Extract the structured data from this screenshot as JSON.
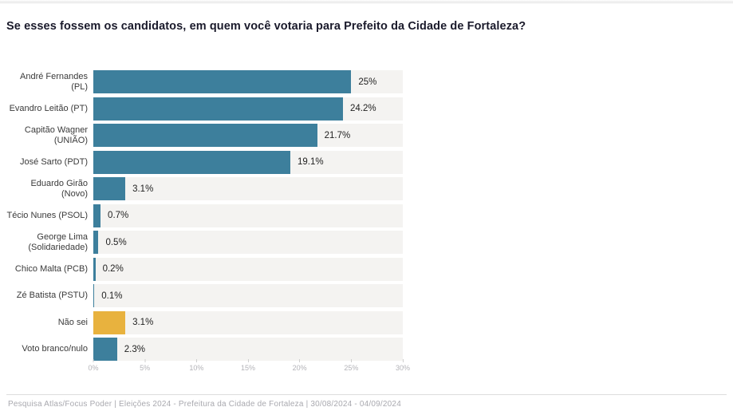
{
  "title": "Se esses fossem os candidatos, em quem você votaria para Prefeito da Cidade de Fortaleza?",
  "chart_data": {
    "type": "bar",
    "orientation": "horizontal",
    "title": "Se esses fossem os candidatos, em quem você votaria para Prefeito da Cidade de Fortaleza?",
    "categories": [
      "André Fernandes\n(PL)",
      "Evandro Leitão (PT)",
      "Capitão Wagner\n(UNIÃO)",
      "José Sarto (PDT)",
      "Eduardo Girão\n(Novo)",
      "Técio Nunes (PSOL)",
      "George Lima\n(Solidariedade)",
      "Chico Malta (PCB)",
      "Zé Batista (PSTU)",
      "Não sei",
      "Voto branco/nulo"
    ],
    "values": [
      25,
      24.2,
      21.7,
      19.1,
      3.1,
      0.7,
      0.5,
      0.2,
      0.1,
      3.1,
      2.3
    ],
    "value_labels": [
      "25%",
      "24.2%",
      "21.7%",
      "19.1%",
      "3.1%",
      "0.7%",
      "0.5%",
      "0.2%",
      "0.1%",
      "3.1%",
      "2.3%"
    ],
    "bar_colors": [
      "#3d7f9c",
      "#3d7f9c",
      "#3d7f9c",
      "#3d7f9c",
      "#3d7f9c",
      "#3d7f9c",
      "#3d7f9c",
      "#3d7f9c",
      "#3d7f9c",
      "#e8b23e",
      "#3d7f9c"
    ],
    "xlim": [
      0,
      30
    ],
    "x_tick_values": [
      0,
      5,
      10,
      15,
      20,
      25,
      30
    ],
    "x_tick_labels": [
      "0%",
      "5%",
      "10%",
      "15%",
      "20%",
      "25%",
      "30%"
    ],
    "xlabel": "",
    "ylabel": "",
    "grid": false,
    "legend": "none",
    "colors": {
      "bar_primary": "#3d7f9c",
      "bar_highlight": "#e8b23e",
      "track": "#f4f3f1"
    }
  },
  "footer": {
    "text": "Pesquisa Atlas/Focus Poder  |  Eleições 2024 - Prefeitura da Cidade de Fortaleza  |  30/08/2024 - 04/09/2024"
  }
}
